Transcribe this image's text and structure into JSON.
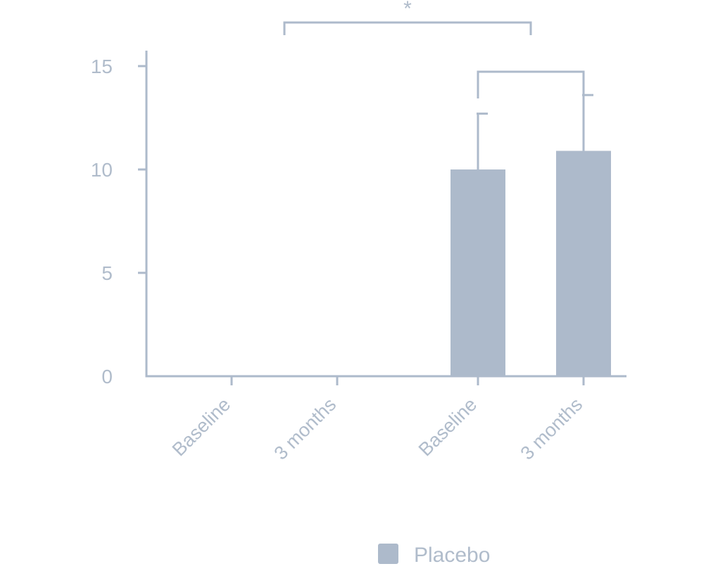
{
  "chart_data": {
    "type": "bar",
    "categories": [
      "Baseline",
      "3 months",
      "Baseline",
      "3 months"
    ],
    "series": [
      {
        "name": "Placebo",
        "values": [
          0,
          0,
          10.0,
          10.9
        ],
        "error_upper": [
          null,
          null,
          12.7,
          13.6
        ]
      }
    ],
    "ylim": [
      0,
      15
    ],
    "yticks": [
      "0",
      "5",
      "10",
      "15"
    ],
    "title": "",
    "xlabel": "",
    "ylabel": "",
    "grid": false,
    "legend_position": "bottom",
    "colors": {
      "bar": "#adbacb",
      "axis": "#adbacb",
      "text": "#b0bccb"
    },
    "significance": [
      {
        "from": 1,
        "to": 3,
        "label": "*"
      },
      {
        "from": 2,
        "to": 3,
        "label": ""
      }
    ]
  }
}
